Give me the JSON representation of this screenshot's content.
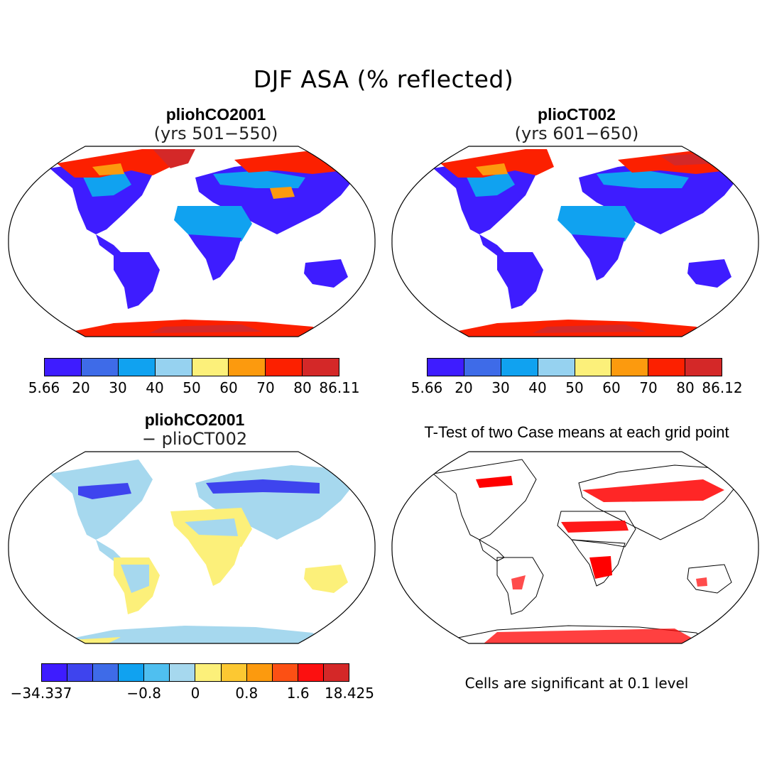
{
  "title": "DJF ASA (% reflected)",
  "panels": {
    "top_left": {
      "title": "pliohCO2001",
      "subtitle": "(yrs 501−550)"
    },
    "top_right": {
      "title": "plioCT002",
      "subtitle": "(yrs 601−650)"
    },
    "bottom_left": {
      "title": "pliohCO2001",
      "subtitle": "− plioCT002"
    },
    "bottom_right": {
      "title": "T-Test of two Case means at each grid point",
      "note": "Cells are significant at 0.1 level"
    }
  },
  "colorbars": {
    "top_left": {
      "colors": [
        "#3e1cff",
        "#3e6be8",
        "#10a2f0",
        "#96d2f0",
        "#fcf07a",
        "#fc9a0e",
        "#fc2000",
        "#d42828"
      ],
      "labels": [
        "5.66",
        "20",
        "30",
        "40",
        "50",
        "60",
        "70",
        "80",
        "86.11"
      ]
    },
    "top_right": {
      "colors": [
        "#3e1cff",
        "#3e6be8",
        "#10a2f0",
        "#96d2f0",
        "#fcf07a",
        "#fc9a0e",
        "#fc2000",
        "#d42828"
      ],
      "labels": [
        "5.66",
        "20",
        "30",
        "40",
        "50",
        "60",
        "70",
        "80",
        "86.12"
      ]
    },
    "bottom_left": {
      "colors": [
        "#3e1cff",
        "#3e44ee",
        "#3e6be8",
        "#10a2f0",
        "#4fbff0",
        "#a6d8ee",
        "#fcf07a",
        "#fcc832",
        "#fc9a0e",
        "#fc5014",
        "#fc1010",
        "#d42828"
      ],
      "labels": [
        "−34.337",
        "−0.8",
        "0",
        "0.8",
        "1.6",
        "18.425"
      ],
      "label_positions": [
        0,
        4,
        6,
        8,
        10,
        12
      ]
    }
  },
  "map_colors": {
    "land_low": "#3e1cff",
    "land_mid": "#10a2f0",
    "land_light": "#96d2f0",
    "snow_red": "#fc2000",
    "snow_dark": "#d42828",
    "snow_orange": "#fc9a0e",
    "diff_light": "#a6d8ee",
    "diff_yellow": "#fcf07a",
    "sig_red": "#ff0000"
  }
}
